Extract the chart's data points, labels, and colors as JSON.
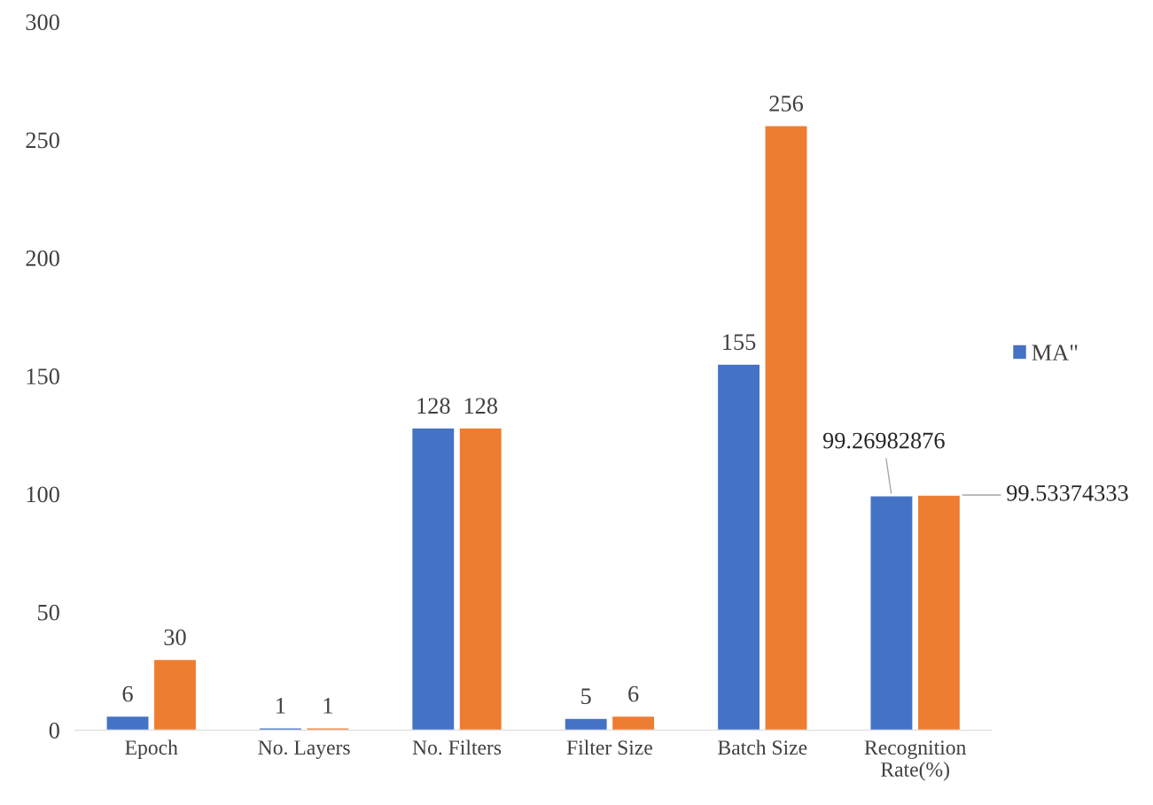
{
  "chart_data": {
    "type": "bar",
    "categories": [
      "Epoch",
      "No. Layers",
      "No. Filters",
      "Filter Size",
      "Batch Size",
      "Recognition Rate(%)"
    ],
    "series": [
      {
        "name": "MA\"",
        "color": "#4472c4",
        "values": [
          6,
          1,
          128,
          5,
          155,
          99.26982876
        ]
      },
      {
        "color": "#ed7d31",
        "values": [
          30,
          1,
          128,
          6,
          256,
          99.53374333
        ]
      }
    ],
    "ylim": [
      0,
      300
    ],
    "yticks": [
      0,
      50,
      100,
      150,
      200,
      250,
      300
    ],
    "data_labels": true,
    "grid": false,
    "legend": "right"
  }
}
